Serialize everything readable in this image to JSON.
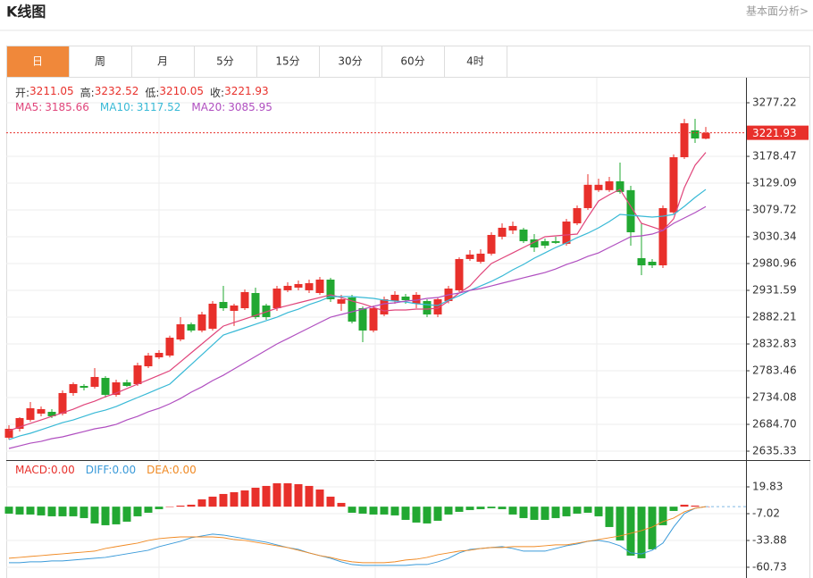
{
  "header": {
    "title": "K线图",
    "link": "基本面分析>"
  },
  "tabs": [
    "日",
    "周",
    "月",
    "5分",
    "15分",
    "30分",
    "60分",
    "4时"
  ],
  "active_tab": 0,
  "chart_data": [
    {
      "type": "candlestick",
      "ohlc_labels": [
        "开:",
        "高:",
        "低:",
        "收:"
      ],
      "up_color": "#e8302b",
      "down_color": "#22a832",
      "ylim": [
        2618.9,
        3321.7
      ],
      "yticks": [
        3277.22,
        3178.47,
        3129.09,
        3079.72,
        3030.34,
        2980.96,
        2931.59,
        2882.21,
        2832.83,
        2783.46,
        2734.08,
        {
          "value": 2684.7,
          "label": "2684.70"
        },
        2635.33
      ],
      "grid": true,
      "open": [
        2660.1,
        2676.5,
        2693.0,
        2704.5,
        2707.8,
        2704.5,
        2742.4,
        2755.5,
        2753.9,
        2770.3,
        2739.1,
        2762.1,
        2758.8,
        2791.7,
        2808.2,
        2811.5,
        2841.1,
        2869.1,
        2857.6,
        2860.9,
        2910.2,
        2893.8,
        2898.7,
        2926.7,
        2903.7,
        2898.7,
        2931.7,
        2936.6,
        2931.7,
        2926.7,
        2951.4,
        2907.0,
        2918.5,
        2898.7,
        2857.6,
        2887.2,
        2911.9,
        2920.1,
        2907.0,
        2911.9,
        2887.2,
        2911.9,
        2931.7,
        2989.3,
        2984.3,
        2999.2,
        3030.4,
        3041.9,
        3043.6,
        3025.5,
        3022.2,
        3022.2,
        3017.3,
        3055.1,
        3083.1,
        3116.2,
        3116.2,
        3132.5,
        3116.2,
        2990.9,
        2984.3,
        2977.7,
        3075.2,
        3176.9,
        3226.3,
        3211.05
      ],
      "high": [
        2683.0,
        2698.0,
        2725.9,
        2717.7,
        2712.8,
        2747.3,
        2762.1,
        2758.8,
        2788.5,
        2773.6,
        2767.1,
        2767.1,
        2798.3,
        2816.4,
        2821.4,
        2848.0,
        2882.3,
        2872.4,
        2892.1,
        2911.9,
        2939.9,
        2907.0,
        2933.3,
        2936.6,
        2907.0,
        2939.9,
        2946.5,
        2949.8,
        2951.4,
        2956.3,
        2954.7,
        2923.4,
        2923.4,
        2901.9,
        2903.7,
        2920.1,
        2930.0,
        2925.0,
        2928.4,
        2915.2,
        2918.5,
        2939.9,
        2992.6,
        3005.7,
        3007.3,
        3038.6,
        3055.1,
        3058.4,
        3046.9,
        3035.3,
        3027.1,
        3030.4,
        3063.3,
        3088.0,
        3145.6,
        3137.4,
        3140.7,
        3167.0,
        3124.2,
        3055.1,
        2989.3,
        3088.0,
        3182.1,
        3247.5,
        3247.7,
        3232.52
      ],
      "low": [
        2656.8,
        2671.5,
        2689.7,
        2699.6,
        2696.3,
        2701.2,
        2737.4,
        2747.3,
        2750.6,
        2734.1,
        2735.8,
        2753.9,
        2755.5,
        2788.5,
        2804.9,
        2808.2,
        2837.8,
        2854.3,
        2854.3,
        2857.6,
        2893.8,
        2865.9,
        2895.4,
        2879.0,
        2877.3,
        2893.8,
        2928.4,
        2931.7,
        2926.7,
        2923.4,
        2910.2,
        2893.8,
        2870.8,
        2836.2,
        2854.3,
        2883.9,
        2907.0,
        2907.0,
        2898.7,
        2882.3,
        2882.3,
        2907.7,
        2928.4,
        2986.0,
        2981.0,
        2995.9,
        3025.5,
        3035.3,
        3018.9,
        3002.4,
        3009.0,
        3017.3,
        3014.0,
        3051.8,
        3079.8,
        3112.9,
        3112.9,
        3109.6,
        3014.0,
        2959.6,
        2972.8,
        2972.8,
        3071.6,
        3173.6,
        3203.2,
        3210.05
      ],
      "close": [
        2676.5,
        2696.3,
        2714.4,
        2712.8,
        2699.6,
        2742.4,
        2758.8,
        2752.2,
        2772.0,
        2739.1,
        2762.1,
        2755.5,
        2793.4,
        2811.5,
        2816.4,
        2844.4,
        2869.1,
        2857.6,
        2887.2,
        2907.0,
        2898.7,
        2903.7,
        2928.4,
        2882.3,
        2882.3,
        2934.9,
        2939.9,
        2943.2,
        2944.8,
        2951.4,
        2915.2,
        2915.2,
        2874.0,
        2857.6,
        2898.7,
        2915.2,
        2923.4,
        2913.5,
        2923.4,
        2887.2,
        2915.2,
        2934.9,
        2989.3,
        2997.5,
        2999.2,
        3033.7,
        3046.9,
        3050.2,
        3022.2,
        3010.6,
        3014.0,
        3019.0,
        3058.4,
        3083.1,
        3126.1,
        3126.1,
        3132.5,
        3112.9,
        3038.6,
        2977.7,
        2977.7,
        3083.1,
        3176.9,
        3239.5,
        3211.4,
        3221.93
      ],
      "series": [
        {
          "name": "MA5:",
          "color": "#e0457b",
          "values": [
            2673.2,
            2679.8,
            2686.4,
            2692.9,
            2699.5,
            2706.1,
            2712.7,
            2720.9,
            2727.5,
            2735.7,
            2742.3,
            2750.6,
            2758.8,
            2767.0,
            2775.2,
            2783.5,
            2799.9,
            2816.4,
            2832.9,
            2849.3,
            2865.8,
            2872.4,
            2878.9,
            2885.5,
            2892.1,
            2898.7,
            2903.6,
            2908.6,
            2913.5,
            2918.4,
            2923.4,
            2918.4,
            2911.9,
            2906.9,
            2900.3,
            2893.8,
            2895.4,
            2895.4,
            2897.0,
            2897.0,
            2898.7,
            2911.9,
            2926.7,
            2939.8,
            2961.2,
            2981.0,
            2990.9,
            3000.7,
            3010.6,
            3020.5,
            3030.4,
            3032.0,
            3033.7,
            3035.3,
            3066.6,
            3096.2,
            3107.7,
            3117.6,
            3086.3,
            3055.1,
            3048.5,
            3041.9,
            3063.3,
            3120.9,
            3162.1,
            3185.66
          ]
        },
        {
          "name": "MA10:",
          "color": "#38b9d6",
          "values": [
            2656.7,
            2663.3,
            2668.3,
            2674.8,
            2681.4,
            2688.0,
            2692.9,
            2699.5,
            2706.1,
            2711.0,
            2717.6,
            2725.9,
            2734.1,
            2742.3,
            2750.6,
            2758.8,
            2776.9,
            2795.0,
            2813.1,
            2831.2,
            2849.3,
            2855.9,
            2862.5,
            2869.1,
            2875.7,
            2882.2,
            2890.5,
            2897.0,
            2905.3,
            2911.9,
            2920.1,
            2920.1,
            2920.1,
            2918.4,
            2916.8,
            2913.5,
            2911.9,
            2910.2,
            2906.9,
            2905.3,
            2903.6,
            2913.5,
            2921.7,
            2931.6,
            2939.8,
            2948.1,
            2958.0,
            2969.5,
            2979.3,
            2990.9,
            3000.7,
            3010.6,
            3018.9,
            3028.7,
            3037.0,
            3046.8,
            3058.4,
            3071.5,
            3069.9,
            3068.2,
            3066.6,
            3068.2,
            3071.5,
            3086.3,
            3102.8,
            3117.52
          ]
        },
        {
          "name": "MA20:",
          "color": "#b04fc0",
          "values": [
            2640.3,
            2645.2,
            2650.1,
            2653.4,
            2658.4,
            2661.7,
            2666.6,
            2671.5,
            2676.5,
            2679.8,
            2684.7,
            2692.9,
            2699.5,
            2707.8,
            2714.3,
            2722.6,
            2732.4,
            2744.0,
            2753.8,
            2765.4,
            2775.2,
            2786.8,
            2798.3,
            2809.8,
            2821.3,
            2832.9,
            2842.7,
            2852.6,
            2862.5,
            2872.4,
            2882.2,
            2887.2,
            2892.1,
            2897.0,
            2902.0,
            2906.9,
            2908.6,
            2911.9,
            2913.5,
            2916.8,
            2918.4,
            2923.4,
            2926.7,
            2931.6,
            2934.9,
            2939.8,
            2944.8,
            2949.7,
            2954.7,
            2959.6,
            2964.5,
            2971.1,
            2979.3,
            2985.9,
            2994.2,
            3000.7,
            3010.6,
            3020.5,
            3030.4,
            3032.0,
            3035.3,
            3041.9,
            3055.1,
            3064.9,
            3074.8,
            3085.95
          ]
        }
      ]
    },
    {
      "type": "macd",
      "ylim": [
        -71.5,
        44.0
      ],
      "yticks": [
        19.83,
        -7.02,
        -33.88,
        -60.73
      ],
      "grid": true,
      "series": [
        {
          "name": "MACD:",
          "kind": "bar",
          "color": "#e8302b",
          "down_color": "#22a832",
          "current": {
            "value": 0,
            "label": "0.00"
          },
          "values": [
            -6.98,
            -7.88,
            -7.88,
            -8.77,
            -9.67,
            -9.67,
            -9.67,
            -11.46,
            -16.83,
            -18.62,
            -17.72,
            -15.04,
            -9.67,
            -6.09,
            -2.51,
            0.18,
            1.07,
            1.97,
            7.34,
            10.03,
            12.71,
            14.5,
            16.29,
            18.98,
            20.77,
            23.45,
            23.45,
            22.56,
            20.77,
            17.19,
            10.03,
            3.76,
            -6.09,
            -6.98,
            -7.88,
            -7.88,
            -8.77,
            -13.25,
            -15.93,
            -16.83,
            -14.14,
            -7.88,
            -5.19,
            -3.4,
            -2.51,
            -1.61,
            -2.51,
            -7.88,
            -11.46,
            -13.25,
            -13.25,
            -11.46,
            -9.67,
            -6.98,
            -6.09,
            -9.67,
            -20.41,
            -33.84,
            -49.06,
            -51.74,
            -42.79,
            -18.62,
            -4.3,
            1.97,
            1.07,
            0
          ]
        },
        {
          "name": "DIFF:",
          "kind": "line",
          "color": "#3a9ad9",
          "current": {
            "value": 0,
            "label": "0.00"
          },
          "values": [
            -56.22,
            -56.22,
            -55.32,
            -55.32,
            -54.43,
            -54.43,
            -53.53,
            -52.64,
            -51.74,
            -50.85,
            -49.06,
            -47.27,
            -45.48,
            -43.69,
            -40.1,
            -37.42,
            -34.73,
            -31.15,
            -29.36,
            -27.57,
            -28.47,
            -30.26,
            -32.05,
            -33.84,
            -35.63,
            -38.31,
            -41.0,
            -42.79,
            -46.37,
            -49.06,
            -51.74,
            -55.32,
            -58.01,
            -58.9,
            -58.9,
            -58.9,
            -58.9,
            -58.9,
            -58.01,
            -58.01,
            -55.32,
            -51.74,
            -46.37,
            -42.79,
            -41.9,
            -41.0,
            -40.1,
            -41.9,
            -44.58,
            -44.58,
            -44.58,
            -41.9,
            -39.21,
            -37.42,
            -34.73,
            -33.84,
            -35.63,
            -39.21,
            -46.37,
            -47.27,
            -43.69,
            -36.52,
            -20.41,
            -6.98,
            -1.61,
            0
          ]
        },
        {
          "name": "DEA:",
          "kind": "line",
          "color": "#f08a24",
          "current": {
            "value": 0,
            "label": "0.00"
          },
          "values": [
            -51.74,
            -50.85,
            -49.95,
            -49.06,
            -48.16,
            -47.27,
            -46.37,
            -45.48,
            -44.58,
            -41.9,
            -40.1,
            -38.31,
            -36.52,
            -33.84,
            -32.05,
            -31.15,
            -30.26,
            -30.26,
            -30.26,
            -30.26,
            -31.15,
            -32.94,
            -33.84,
            -35.63,
            -37.42,
            -39.21,
            -41.0,
            -43.69,
            -46.37,
            -49.06,
            -50.85,
            -53.53,
            -55.32,
            -56.22,
            -56.22,
            -56.22,
            -55.32,
            -53.53,
            -52.64,
            -50.85,
            -48.16,
            -46.37,
            -44.58,
            -43.69,
            -41.9,
            -41.0,
            -41.0,
            -40.1,
            -40.1,
            -40.1,
            -39.21,
            -38.31,
            -38.31,
            -36.52,
            -34.73,
            -32.94,
            -31.15,
            -29.36,
            -26.68,
            -23.99,
            -20.41,
            -15.04,
            -11.46,
            -5.19,
            -1.61,
            0
          ]
        }
      ]
    }
  ]
}
